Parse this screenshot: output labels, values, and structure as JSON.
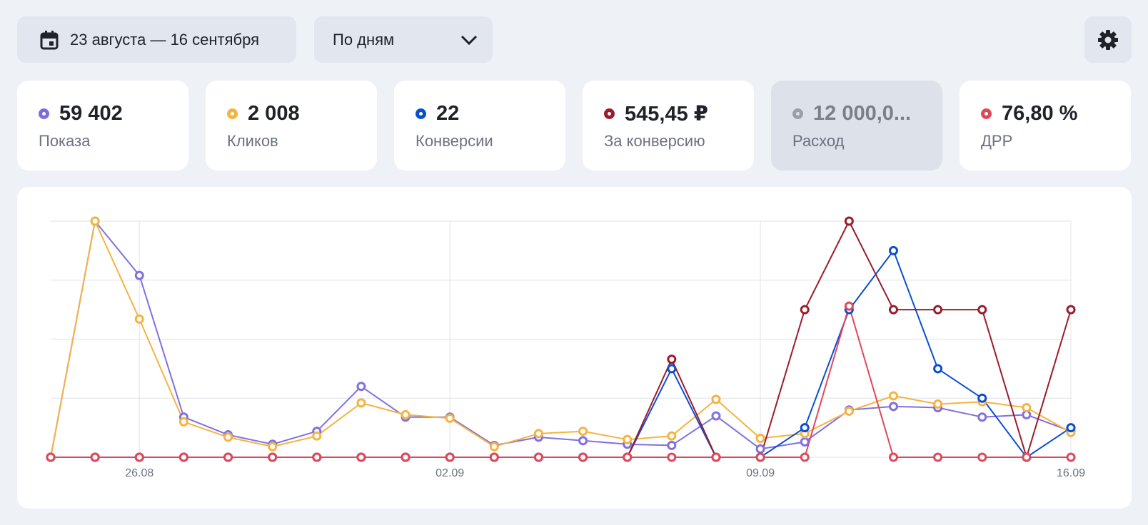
{
  "toolbar": {
    "date_range": "23 августа — 16 сентября",
    "date_icon": "calendar-icon",
    "grouping": "По дням",
    "grouping_icon": "chevron-down-icon",
    "settings_icon": "gear-icon"
  },
  "metrics": [
    {
      "value": "59 402",
      "label": "Показа",
      "color": "#7b6be0",
      "selected": false
    },
    {
      "value": "2 008",
      "label": "Кликов",
      "color": "#f5b342",
      "selected": false
    },
    {
      "value": "22",
      "label": "Конверсии",
      "color": "#0a4fd1",
      "selected": false
    },
    {
      "value": "545,45 ₽",
      "label": "За конверсию",
      "color": "#9b1c2b",
      "selected": false
    },
    {
      "value": "12 000,0...",
      "label": "Расход",
      "color": "#9aa0aa",
      "selected": true
    },
    {
      "value": "76,80 %",
      "label": "ДРР",
      "color": "#e0485a",
      "selected": false
    }
  ],
  "chart_data": {
    "type": "line",
    "x_tick_labels": [
      "26.08",
      "02.09",
      "09.09",
      "16.09"
    ],
    "x_tick_indices": [
      2,
      9,
      16,
      23
    ],
    "ylim": [
      0,
      100
    ],
    "grid": true,
    "series": [
      {
        "color": "#8070e0",
        "values": [
          0,
          100,
          77,
          17,
          9.5,
          5.5,
          11,
          30,
          17,
          17,
          5,
          8.5,
          7,
          5.5,
          5,
          17.5,
          3.5,
          6.5,
          20,
          21.5,
          21,
          17,
          18,
          11
        ]
      },
      {
        "color": "#f5b342",
        "values": [
          0,
          100,
          58.5,
          15,
          8.5,
          4.5,
          9,
          23,
          18,
          16.5,
          4.5,
          10,
          11,
          7.5,
          9,
          24.5,
          8,
          10,
          19.5,
          26,
          22.5,
          23.5,
          21,
          10.5
        ]
      },
      {
        "color": "#0a4fd1",
        "values": [
          0,
          0,
          0,
          0,
          0,
          0,
          0,
          0,
          0,
          0,
          0,
          0,
          0,
          0,
          37.5,
          0,
          0,
          12.5,
          62.5,
          87.5,
          37.5,
          25,
          0,
          12.5
        ]
      },
      {
        "color": "#9b1c2b",
        "values": [
          0,
          0,
          0,
          0,
          0,
          0,
          0,
          0,
          0,
          0,
          0,
          0,
          0,
          0,
          41.5,
          0,
          0,
          62.5,
          100,
          62.5,
          62.5,
          62.5,
          0,
          62.5
        ]
      },
      {
        "color": "#e0485a",
        "values": [
          0,
          0,
          0,
          0,
          0,
          0,
          0,
          0,
          0,
          0,
          0,
          0,
          0,
          0,
          0,
          0,
          0,
          0,
          64,
          0,
          0,
          0,
          0,
          0
        ]
      }
    ]
  }
}
